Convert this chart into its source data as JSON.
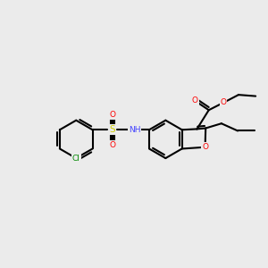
{
  "bg_color": "#ebebeb",
  "line_color": "#000000",
  "bond_width": 1.5,
  "atom_colors": {
    "O": "#ff0000",
    "N": "#4444ff",
    "S": "#cccc00",
    "Cl": "#008800",
    "C": "#000000",
    "H": "#000000"
  },
  "figsize": [
    3.0,
    3.0
  ],
  "dpi": 100
}
